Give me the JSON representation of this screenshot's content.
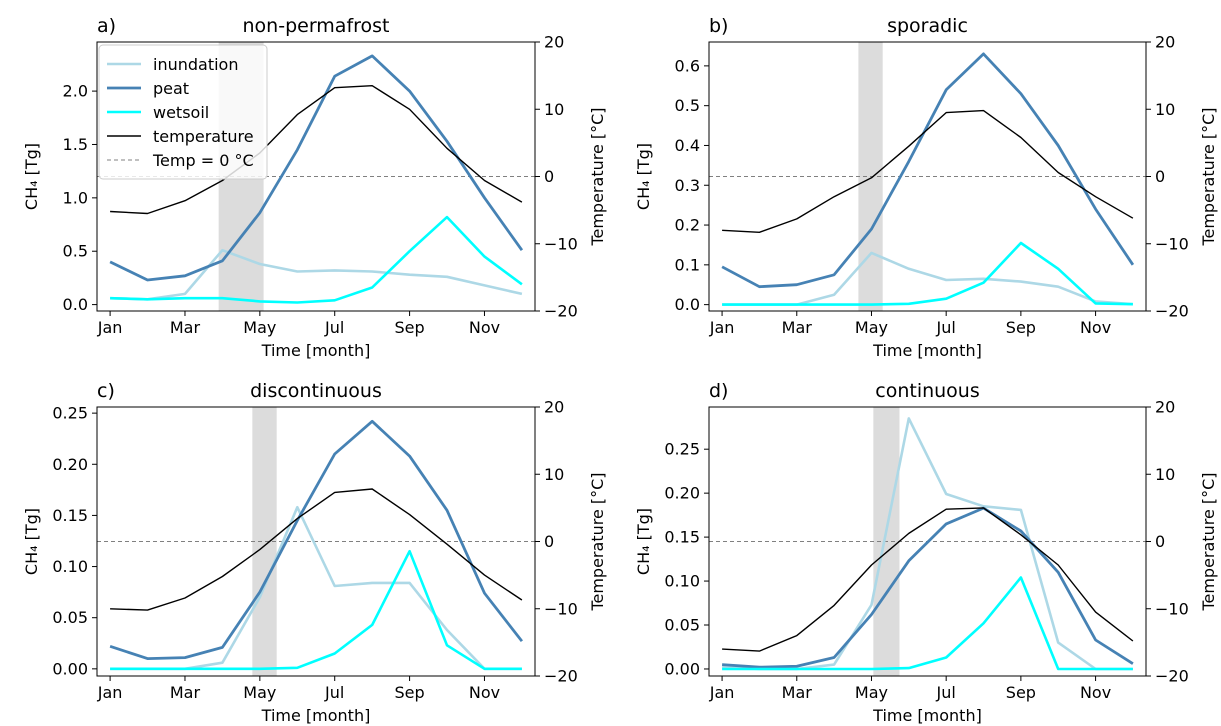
{
  "colors": {
    "inundation": "#add8e6",
    "peat": "#4682b4",
    "wetsoil": "#00ffff",
    "temperature": "#000000",
    "zero_line": "#808080",
    "shade": "#dcdcdc"
  },
  "legend": {
    "placement": "upper-left of panel a",
    "entries": [
      "inundation",
      "peat",
      "wetsoil",
      "temperature",
      "Temp = 0 °C"
    ]
  },
  "chart_data": [
    {
      "type": "line",
      "panel_label": "a)",
      "title": "non-permafrost",
      "xlabel": "Time [month]",
      "ylabel": "CH₄ [Tg]",
      "y2label": "Temperature [°C]",
      "x": [
        1,
        2,
        3,
        4,
        5,
        6,
        7,
        8,
        9,
        10,
        11,
        12
      ],
      "xticks": [
        1,
        3,
        5,
        7,
        9,
        11
      ],
      "xticklabels": [
        "Jan",
        "Mar",
        "May",
        "Jul",
        "Sep",
        "Nov"
      ],
      "xlim": [
        0.65,
        12.35
      ],
      "ylim": [
        -0.06,
        2.46
      ],
      "yticks": [
        0.0,
        0.5,
        1.0,
        1.5,
        2.0
      ],
      "yticklabels": [
        "0.0",
        "0.5",
        "1.0",
        "1.5",
        "2.0"
      ],
      "y2lim": [
        -20,
        20
      ],
      "y2ticks": [
        -20,
        -10,
        0,
        10,
        20
      ],
      "y2ticklabels": [
        "−20",
        "−10",
        "0",
        "10",
        "20"
      ],
      "shade": [
        3.9,
        5.1
      ],
      "series": [
        {
          "name": "inundation",
          "axis": "left",
          "values": [
            0.06,
            0.05,
            0.1,
            0.51,
            0.38,
            0.31,
            0.32,
            0.31,
            0.28,
            0.26,
            0.18,
            0.1
          ]
        },
        {
          "name": "peat",
          "axis": "left",
          "values": [
            0.4,
            0.23,
            0.27,
            0.41,
            0.86,
            1.45,
            2.14,
            2.33,
            2.0,
            1.53,
            1.0,
            0.51
          ]
        },
        {
          "name": "wetsoil",
          "axis": "left",
          "values": [
            0.06,
            0.05,
            0.06,
            0.06,
            0.03,
            0.02,
            0.04,
            0.16,
            0.5,
            0.82,
            0.45,
            0.19
          ]
        },
        {
          "name": "temperature",
          "axis": "right",
          "values": [
            -5.2,
            -5.5,
            -3.6,
            -0.6,
            3.5,
            9.2,
            13.2,
            13.5,
            10.0,
            4.2,
            -0.6,
            -3.8
          ]
        }
      ]
    },
    {
      "type": "line",
      "panel_label": "b)",
      "title": "sporadic",
      "xlabel": "Time [month]",
      "ylabel": "CH₄ [Tg]",
      "y2label": "Temperature [°C]",
      "x": [
        1,
        2,
        3,
        4,
        5,
        6,
        7,
        8,
        9,
        10,
        11,
        12
      ],
      "xticks": [
        1,
        3,
        5,
        7,
        9,
        11
      ],
      "xticklabels": [
        "Jan",
        "Mar",
        "May",
        "Jul",
        "Sep",
        "Nov"
      ],
      "xlim": [
        0.65,
        12.35
      ],
      "ylim": [
        -0.016,
        0.66
      ],
      "yticks": [
        0.0,
        0.1,
        0.2,
        0.3,
        0.4,
        0.5,
        0.6
      ],
      "yticklabels": [
        "0.0",
        "0.1",
        "0.2",
        "0.3",
        "0.4",
        "0.5",
        "0.6"
      ],
      "y2lim": [
        -20,
        20
      ],
      "y2ticks": [
        -20,
        -10,
        0,
        10,
        20
      ],
      "y2ticklabels": [
        "−20",
        "−10",
        "0",
        "10",
        "20"
      ],
      "shade": [
        4.65,
        5.3
      ],
      "series": [
        {
          "name": "inundation",
          "axis": "left",
          "values": [
            0.0,
            0.0,
            0.0,
            0.025,
            0.13,
            0.09,
            0.062,
            0.065,
            0.058,
            0.045,
            0.008,
            0.001
          ]
        },
        {
          "name": "peat",
          "axis": "left",
          "values": [
            0.095,
            0.045,
            0.05,
            0.075,
            0.19,
            0.36,
            0.54,
            0.63,
            0.53,
            0.4,
            0.24,
            0.1
          ]
        },
        {
          "name": "wetsoil",
          "axis": "left",
          "values": [
            0.0,
            0.0,
            0.0,
            0.0,
            0.0,
            0.002,
            0.015,
            0.055,
            0.155,
            0.09,
            0.003,
            0.001
          ]
        },
        {
          "name": "temperature",
          "axis": "right",
          "values": [
            -8.0,
            -8.3,
            -6.3,
            -3.0,
            -0.2,
            4.5,
            9.5,
            9.8,
            5.8,
            0.6,
            -3.0,
            -6.2
          ]
        }
      ]
    },
    {
      "type": "line",
      "panel_label": "c)",
      "title": "discontinuous",
      "xlabel": "Time [month]",
      "ylabel": "CH₄ [Tg]",
      "y2label": "Temperature [°C]",
      "x": [
        1,
        2,
        3,
        4,
        5,
        6,
        7,
        8,
        9,
        10,
        11,
        12
      ],
      "xticks": [
        1,
        3,
        5,
        7,
        9,
        11
      ],
      "xticklabels": [
        "Jan",
        "Mar",
        "May",
        "Jul",
        "Sep",
        "Nov"
      ],
      "xlim": [
        0.65,
        12.35
      ],
      "ylim": [
        -0.007,
        0.256
      ],
      "yticks": [
        0.0,
        0.05,
        0.1,
        0.15,
        0.2,
        0.25
      ],
      "yticklabels": [
        "0.00",
        "0.05",
        "0.10",
        "0.15",
        "0.20",
        "0.25"
      ],
      "y2lim": [
        -20,
        20
      ],
      "y2ticks": [
        -20,
        -10,
        0,
        10,
        20
      ],
      "y2ticklabels": [
        "−20",
        "−10",
        "0",
        "10",
        "20"
      ],
      "shade": [
        4.8,
        5.45
      ],
      "series": [
        {
          "name": "inundation",
          "axis": "left",
          "values": [
            0.0,
            0.0,
            0.0,
            0.006,
            0.07,
            0.158,
            0.081,
            0.084,
            0.084,
            0.038,
            0.0,
            0.0
          ]
        },
        {
          "name": "peat",
          "axis": "left",
          "values": [
            0.022,
            0.01,
            0.011,
            0.021,
            0.075,
            0.145,
            0.21,
            0.242,
            0.208,
            0.155,
            0.074,
            0.027
          ]
        },
        {
          "name": "wetsoil",
          "axis": "left",
          "values": [
            0.0,
            0.0,
            0.0,
            0.0,
            0.0,
            0.001,
            0.015,
            0.043,
            0.115,
            0.023,
            0.0,
            0.0
          ]
        },
        {
          "name": "temperature",
          "axis": "right",
          "values": [
            -10.0,
            -10.2,
            -8.4,
            -5.2,
            -1.2,
            3.4,
            7.3,
            7.8,
            4.0,
            -0.4,
            -5.0,
            -8.7
          ]
        }
      ]
    },
    {
      "type": "line",
      "panel_label": "d)",
      "title": "continuous",
      "xlabel": "Time [month]",
      "ylabel": "CH₄ [Tg]",
      "y2label": "Temperature [°C]",
      "x": [
        1,
        2,
        3,
        4,
        5,
        6,
        7,
        8,
        9,
        10,
        11,
        12
      ],
      "xticks": [
        1,
        3,
        5,
        7,
        9,
        11
      ],
      "xticklabels": [
        "Jan",
        "Mar",
        "May",
        "Jul",
        "Sep",
        "Nov"
      ],
      "xlim": [
        0.65,
        12.35
      ],
      "ylim": [
        -0.008,
        0.298
      ],
      "yticks": [
        0.0,
        0.05,
        0.1,
        0.15,
        0.2,
        0.25
      ],
      "yticklabels": [
        "0.00",
        "0.05",
        "0.10",
        "0.15",
        "0.20",
        "0.25"
      ],
      "y2lim": [
        -20,
        20
      ],
      "y2ticks": [
        -20,
        -10,
        0,
        10,
        20
      ],
      "y2ticklabels": [
        "−20",
        "−10",
        "0",
        "10",
        "20"
      ],
      "shade": [
        5.05,
        5.75
      ],
      "series": [
        {
          "name": "inundation",
          "axis": "left",
          "values": [
            0.002,
            0.0,
            0.0,
            0.005,
            0.073,
            0.285,
            0.199,
            0.185,
            0.181,
            0.03,
            0.0,
            0.0
          ]
        },
        {
          "name": "peat",
          "axis": "left",
          "values": [
            0.005,
            0.002,
            0.003,
            0.013,
            0.062,
            0.123,
            0.165,
            0.183,
            0.157,
            0.11,
            0.033,
            0.006
          ]
        },
        {
          "name": "wetsoil",
          "axis": "left",
          "values": [
            0.0,
            0.0,
            0.0,
            0.0,
            0.0,
            0.001,
            0.013,
            0.052,
            0.104,
            0.0,
            0.0,
            0.0
          ]
        },
        {
          "name": "temperature",
          "axis": "right",
          "values": [
            -16.0,
            -16.3,
            -14.0,
            -9.5,
            -3.5,
            1.2,
            4.8,
            5.0,
            1.0,
            -3.5,
            -10.5,
            -14.8
          ]
        }
      ]
    }
  ]
}
